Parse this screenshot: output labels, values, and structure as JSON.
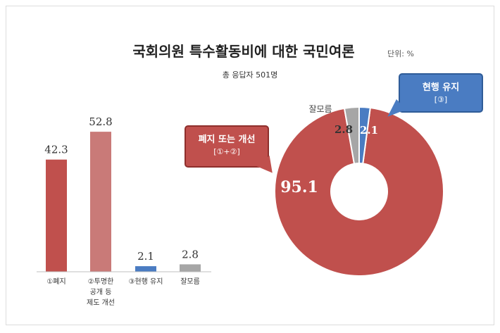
{
  "chart_data": [
    {
      "type": "bar",
      "title": "국회의원 특수활동비에 대한 국민여론",
      "unit": "단위: %",
      "subtitle": "총 응답자 501명",
      "categories": [
        "①폐지",
        "②투명한 공개 등 제도 개선",
        "③현행 유지",
        "잘모름"
      ],
      "category_lines": [
        [
          "①폐지"
        ],
        [
          "②투명한",
          "공개 등",
          "제도 개선"
        ],
        [
          "③현행 유지"
        ],
        [
          "잘모름"
        ]
      ],
      "values": [
        42.3,
        52.8,
        2.1,
        2.8
      ],
      "value_labels": [
        "42.3",
        "52.8",
        "2.1",
        "2.8"
      ],
      "colors": [
        "#c0504d",
        "#c97a78",
        "#4a7cc2",
        "#a6a6a6"
      ],
      "ylim": [
        0,
        60
      ],
      "grid": false
    },
    {
      "type": "pie",
      "donut": true,
      "labels": [
        "폐지 또는 개선 [①+②]",
        "잘모름",
        "현행 유지 [③]"
      ],
      "values": [
        95.1,
        2.8,
        2.1
      ],
      "value_labels": [
        "95.1",
        "2.8",
        "2.1"
      ],
      "colors": [
        "#c0504d",
        "#a6a6a6",
        "#4a7cc2"
      ],
      "outside_label": "잘모름",
      "callouts": {
        "red": {
          "line1": "폐지 또는 개선",
          "line2": "[①+②]"
        },
        "blue": {
          "line1": "현행 유지",
          "line2": "[③]"
        }
      }
    }
  ]
}
